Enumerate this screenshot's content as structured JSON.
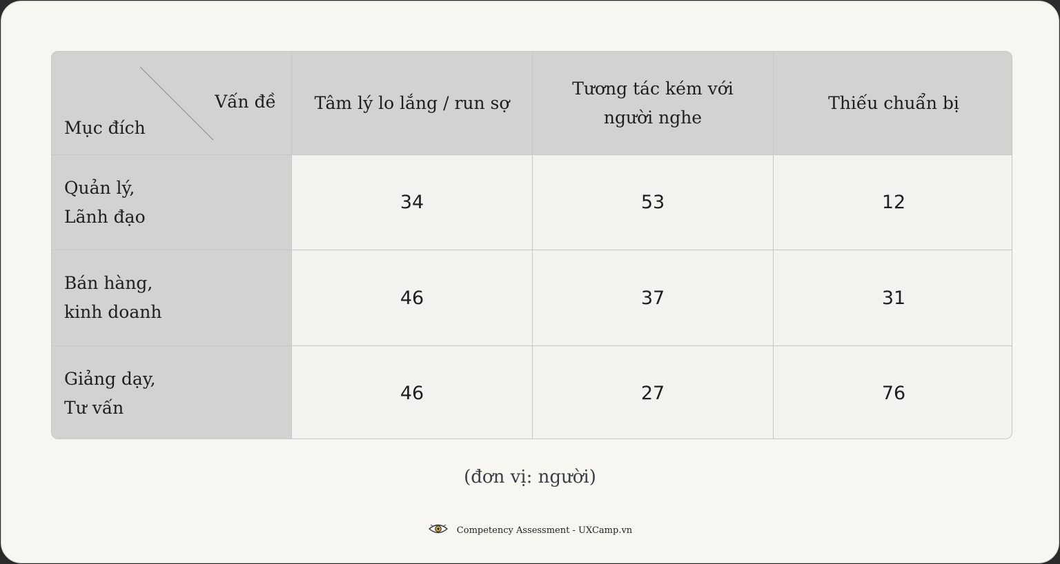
{
  "chart_data": {
    "type": "table",
    "corner": {
      "column_axis_label": "Vấn đề",
      "row_axis_label": "Mục đích"
    },
    "columns": [
      "Tâm lý lo lắng / run sợ",
      "Tương tác kém với người nghe",
      "Thiếu chuẩn bị"
    ],
    "rows": [
      {
        "label_line1": "Quản lý,",
        "label_line2": "Lãnh đạo",
        "values": [
          "34",
          "53",
          "12"
        ]
      },
      {
        "label_line1": "Bán hàng,",
        "label_line2": "kinh doanh",
        "values": [
          "46",
          "37",
          "31"
        ]
      },
      {
        "label_line1": "Giảng dạy,",
        "label_line2": "Tư vấn",
        "values": [
          "46",
          "27",
          "76"
        ]
      }
    ],
    "unit_note": "(đơn vị: người)"
  },
  "footer": {
    "icon": "eye-icon",
    "text": "Competency Assessment - UXCamp.vn"
  },
  "colors": {
    "card_bg": "#f8f6f1",
    "header_bg": "#d3d2d0",
    "cell_bg": "#f3f2ef",
    "grid_line": "#c8c6c2"
  }
}
